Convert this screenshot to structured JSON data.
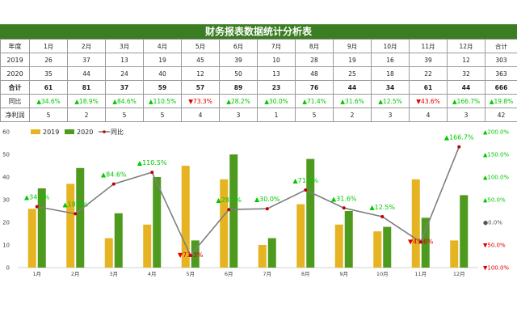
{
  "table": {
    "title": "财务报表数据统计分析表",
    "header": [
      "年度",
      "1月",
      "2月",
      "3月",
      "4月",
      "5月",
      "6月",
      "7月",
      "8月",
      "9月",
      "10月",
      "11月",
      "12月",
      "合计"
    ],
    "rows": [
      {
        "label": "2019",
        "cells": [
          "26",
          "37",
          "13",
          "19",
          "45",
          "39",
          "10",
          "28",
          "19",
          "16",
          "39",
          "12",
          "303"
        ]
      },
      {
        "label": "2020",
        "cells": [
          "35",
          "44",
          "24",
          "40",
          "12",
          "50",
          "13",
          "48",
          "25",
          "18",
          "22",
          "32",
          "363"
        ]
      },
      {
        "label": "合计",
        "cells": [
          "61",
          "81",
          "37",
          "59",
          "57",
          "89",
          "23",
          "76",
          "44",
          "34",
          "61",
          "44",
          "666"
        ]
      },
      {
        "label": "同比",
        "cells": [
          "▲34.6%",
          "▲18.9%",
          "▲84.6%",
          "▲110.5%",
          "▼73.3%",
          "▲28.2%",
          "▲30.0%",
          "▲71.4%",
          "▲31.6%",
          "▲12.5%",
          "▼43.6%",
          "▲166.7%",
          "▲19.8%"
        ]
      },
      {
        "label": "净利润",
        "cells": [
          "5",
          "2",
          "5",
          "5",
          "4",
          "3",
          "1",
          "5",
          "2",
          "3",
          "4",
          "3",
          "42"
        ]
      }
    ],
    "colors": {
      "title_bg": "#3a7d22",
      "up": "#00c800",
      "down": "#e00000"
    }
  },
  "chart_data": {
    "type": "bar",
    "categories": [
      "1月",
      "2月",
      "3月",
      "4月",
      "5月",
      "6月",
      "7月",
      "8月",
      "9月",
      "10月",
      "11月",
      "12月"
    ],
    "series": [
      {
        "name": "2019",
        "type": "bar",
        "color": "#e6b422",
        "values": [
          26,
          37,
          13,
          19,
          45,
          39,
          10,
          28,
          19,
          16,
          39,
          12
        ]
      },
      {
        "name": "2020",
        "type": "bar",
        "color": "#4e9a1e",
        "values": [
          35,
          44,
          24,
          40,
          12,
          50,
          13,
          48,
          25,
          18,
          22,
          32
        ]
      },
      {
        "name": "同比",
        "type": "line",
        "axis": "right",
        "color": "#7f7f7f",
        "marker_color": "#c00000",
        "values": [
          34.6,
          18.9,
          84.6,
          110.5,
          -73.3,
          28.2,
          30.0,
          71.4,
          31.6,
          12.5,
          -43.6,
          166.7
        ]
      }
    ],
    "data_labels": [
      "▲34.6%",
      "▲18.9%",
      "▲84.6%",
      "▲110.5%",
      "▼73.3%",
      "▲28.2%",
      "▲30.0%",
      "▲71.4%",
      "▲31.6%",
      "▲12.5%",
      "▼43.6%",
      "▲166.7%"
    ],
    "y_left": {
      "range": [
        0,
        60
      ],
      "ticks": [
        "0",
        "10",
        "20",
        "30",
        "40",
        "50",
        "60"
      ]
    },
    "y_right": {
      "range": [
        -100,
        200
      ],
      "ticks": [
        {
          "value": 200,
          "label": "▲200.0%"
        },
        {
          "value": 150,
          "label": "▲150.0%"
        },
        {
          "value": 100,
          "label": "▲100.0%"
        },
        {
          "value": 50,
          "label": "▲50.0%"
        },
        {
          "value": 0,
          "label": "●0.0%"
        },
        {
          "value": -50,
          "label": "▼50.0%"
        },
        {
          "value": -100,
          "label": "▼100.0%"
        }
      ]
    },
    "legend_position": "top-left",
    "grid": false
  }
}
